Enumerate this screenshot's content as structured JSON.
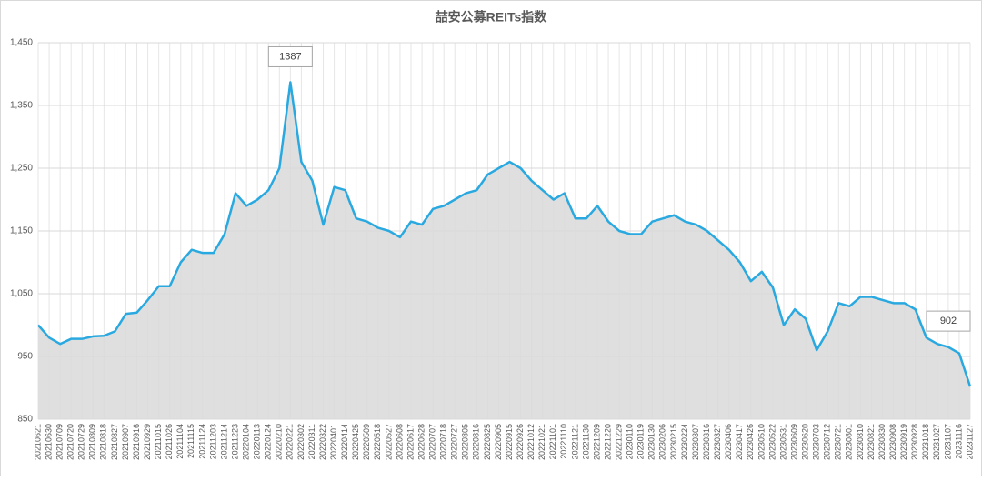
{
  "chart_data": {
    "type": "area",
    "title": "喆安公募REITs指数",
    "categories": [
      "20210621",
      "20210630",
      "20210709",
      "20210720",
      "20210729",
      "20210809",
      "20210818",
      "20210827",
      "20210907",
      "20210916",
      "20210929",
      "20211015",
      "20211026",
      "20211104",
      "20211115",
      "20211124",
      "20211203",
      "20211214",
      "20211223",
      "20220104",
      "20220113",
      "20220124",
      "20220210",
      "20220221",
      "20220302",
      "20220311",
      "20220322",
      "20220401",
      "20220414",
      "20220425",
      "20220509",
      "20220518",
      "20220527",
      "20220608",
      "20220617",
      "20220628",
      "20220707",
      "20220718",
      "20220727",
      "20220805",
      "20220816",
      "20220825",
      "20220905",
      "20220915",
      "20220926",
      "20221012",
      "20221021",
      "20221101",
      "20221110",
      "20221121",
      "20221130",
      "20221209",
      "20221220",
      "20221229",
      "20230110",
      "20230119",
      "20230130",
      "20230206",
      "20230215",
      "20230224",
      "20230307",
      "20230316",
      "20230327",
      "20230406",
      "20230417",
      "20230426",
      "20230510",
      "20230522",
      "20230531",
      "20230609",
      "20230620",
      "20230703",
      "20230712",
      "20230721",
      "20230801",
      "20230810",
      "20230821",
      "20230830",
      "20230908",
      "20230919",
      "20230928",
      "20231018",
      "20231027",
      "20231107",
      "20231116",
      "20231127"
    ],
    "values": [
      1000,
      980,
      970,
      978,
      978,
      982,
      983,
      990,
      1018,
      1020,
      1040,
      1062,
      1062,
      1100,
      1120,
      1115,
      1115,
      1145,
      1210,
      1190,
      1200,
      1215,
      1250,
      1387,
      1260,
      1230,
      1160,
      1220,
      1215,
      1170,
      1165,
      1155,
      1150,
      1140,
      1165,
      1160,
      1185,
      1190,
      1200,
      1210,
      1215,
      1240,
      1250,
      1260,
      1250,
      1230,
      1215,
      1200,
      1210,
      1170,
      1170,
      1190,
      1165,
      1150,
      1145,
      1145,
      1165,
      1170,
      1175,
      1165,
      1160,
      1150,
      1135,
      1120,
      1100,
      1070,
      1085,
      1060,
      1000,
      1025,
      1010,
      960,
      990,
      1035,
      1030,
      1045,
      1045,
      1040,
      1035,
      1035,
      1025,
      980,
      970,
      965,
      955,
      902
    ],
    "color": "#29a9e0",
    "fill": "#d9d9d9",
    "ylim": [
      850,
      1450
    ],
    "yticks": [
      850,
      950,
      {
        "value": 1050,
        "label": "1,050"
      },
      {
        "value": 1150,
        "label": "1,150"
      },
      {
        "value": 1250,
        "label": "1,250"
      },
      {
        "value": 1350,
        "label": "1,350"
      },
      {
        "value": 1450,
        "label": "1,450"
      }
    ],
    "grid": true,
    "annotations": [
      {
        "x": "20220221",
        "text": "1387"
      },
      {
        "x": "20231127",
        "text": "902"
      }
    ]
  }
}
